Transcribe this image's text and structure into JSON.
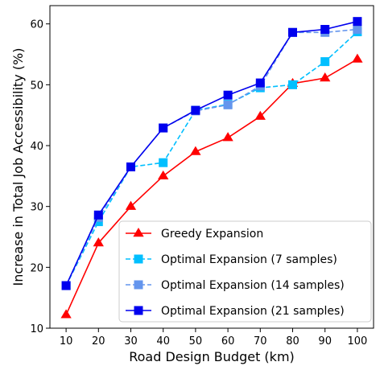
{
  "chart_data": {
    "type": "line",
    "xlabel": "Road Design Budget (km)",
    "ylabel": "Increase in Total Job Accessibility (%)",
    "x": [
      10,
      20,
      30,
      40,
      50,
      60,
      70,
      80,
      90,
      100
    ],
    "xlim": [
      5,
      105
    ],
    "ylim": [
      10,
      63
    ],
    "xticks": [
      10,
      20,
      30,
      40,
      50,
      60,
      70,
      80,
      90,
      100
    ],
    "yticks": [
      10,
      20,
      30,
      40,
      50,
      60
    ],
    "grid": false,
    "legend_position": "lower-right",
    "series": [
      {
        "name": "Greedy Expansion",
        "color": "#ff0000",
        "marker": "triangle",
        "linestyle": "solid",
        "values": [
          12.2,
          24.0,
          30.0,
          35.0,
          39.0,
          41.3,
          44.8,
          50.2,
          51.1,
          54.2
        ]
      },
      {
        "name": "Optimal Expansion (7 samples)",
        "color": "#00bfff",
        "marker": "square",
        "linestyle": "dashed",
        "values": [
          17.0,
          27.5,
          36.5,
          37.2,
          45.8,
          46.8,
          49.5,
          50.0,
          53.8,
          58.7
        ]
      },
      {
        "name": "Optimal Expansion (14 samples)",
        "color": "#6495ed",
        "marker": "square",
        "linestyle": "dashed",
        "values": [
          17.0,
          28.2,
          36.5,
          42.9,
          45.7,
          46.7,
          49.8,
          58.6,
          58.6,
          59.1
        ]
      },
      {
        "name": "Optimal Expansion (21 samples)",
        "color": "#0000ee",
        "marker": "square",
        "linestyle": "solid",
        "values": [
          17.0,
          28.6,
          36.5,
          42.9,
          45.8,
          48.3,
          50.3,
          58.6,
          59.1,
          60.4
        ]
      }
    ]
  }
}
